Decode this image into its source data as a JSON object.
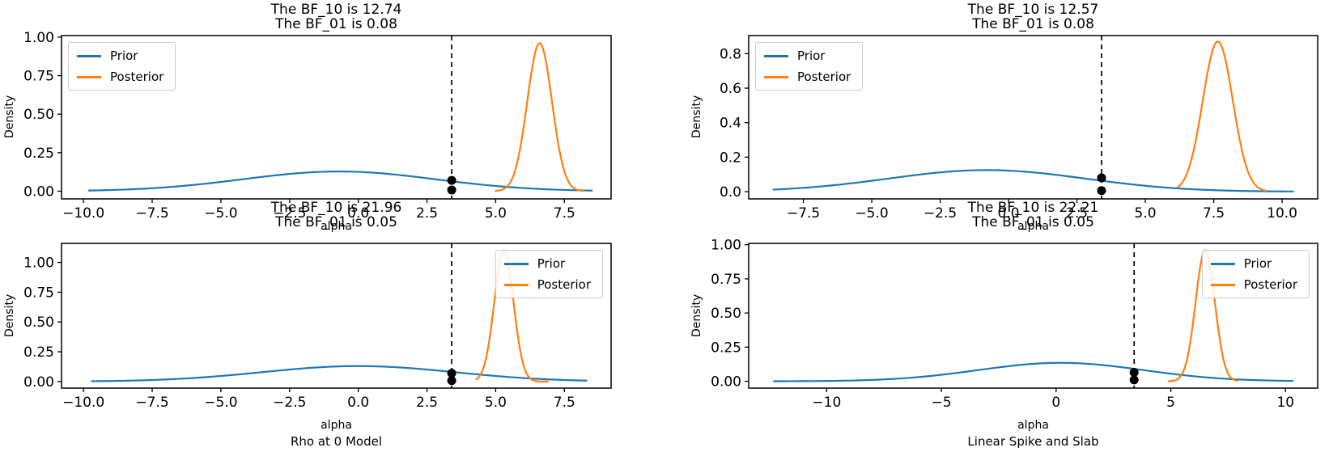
{
  "figure": {
    "background": "#ffffff"
  },
  "colors": {
    "prior": "#1f77b4",
    "posterior": "#ff7f0e",
    "observed": "#000000"
  },
  "legend": {
    "prior_label": "Prior",
    "posterior_label": "Posterior"
  },
  "chart_data": [
    {
      "type": "line",
      "id": "top-left",
      "title_line1": "The BF_10 is 12.74",
      "title_line2": "The BF_01 is 0.08",
      "bf_10": 12.74,
      "bf_01": 0.08,
      "xlabel": "alpha",
      "ylabel": "Density",
      "model_label": "",
      "legend_position": "upper-left",
      "xlim": [
        -10.8,
        9.2
      ],
      "ylim": [
        -0.05,
        1.01
      ],
      "xticks": [
        -10.0,
        -7.5,
        -5.0,
        -2.5,
        0.0,
        2.5,
        5.0,
        7.5
      ],
      "xtick_labels": [
        "−10.0",
        "−7.5",
        "−5.0",
        "−2.5",
        "0.0",
        "2.5",
        "5.0",
        "7.5"
      ],
      "yticks": [
        0.0,
        0.25,
        0.5,
        0.75,
        1.0
      ],
      "ytick_labels": [
        "0.00",
        "0.25",
        "0.50",
        "0.75",
        "1.00"
      ],
      "series": [
        {
          "name": "Prior",
          "color_key": "prior",
          "shape": "gaussian",
          "mu": -0.7,
          "sigma": 3.5,
          "peak": 0.128,
          "support": [
            -9.8,
            8.5
          ]
        },
        {
          "name": "Posterior",
          "color_key": "posterior",
          "shape": "gaussian",
          "mu": 6.6,
          "sigma": 0.45,
          "peak": 0.96,
          "support": [
            5.0,
            8.2
          ]
        }
      ],
      "observed_alpha": 3.4,
      "observed_points": [
        {
          "x": 3.4,
          "y": 0.07
        },
        {
          "x": 3.4,
          "y": 0.008
        }
      ]
    },
    {
      "type": "line",
      "id": "top-right",
      "title_line1": "The BF_10 is 12.57",
      "title_line2": "The BF_01 is 0.08",
      "bf_10": 12.57,
      "bf_01": 0.08,
      "xlabel": "alpha",
      "ylabel": "Density",
      "model_label": "",
      "legend_position": "upper-left",
      "xlim": [
        -9.5,
        11.3
      ],
      "ylim": [
        -0.042,
        0.905
      ],
      "xticks": [
        -7.5,
        -5.0,
        -2.5,
        0.0,
        2.5,
        5.0,
        7.5,
        10.0
      ],
      "xtick_labels": [
        "−7.5",
        "−5.0",
        "−2.5",
        "0.0",
        "2.5",
        "5.0",
        "7.5",
        "10.0"
      ],
      "yticks": [
        0.0,
        0.2,
        0.4,
        0.6,
        0.8
      ],
      "ytick_labels": [
        "0.0",
        "0.2",
        "0.4",
        "0.6",
        "0.8"
      ],
      "series": [
        {
          "name": "Prior",
          "color_key": "prior",
          "shape": "gaussian",
          "mu": -0.8,
          "sigma": 3.6,
          "peak": 0.125,
          "support": [
            -8.6,
            10.4
          ]
        },
        {
          "name": "Posterior",
          "color_key": "posterior",
          "shape": "gaussian",
          "mu": 7.65,
          "sigma": 0.55,
          "peak": 0.87,
          "support": [
            6.2,
            9.4
          ]
        }
      ],
      "observed_alpha": 3.4,
      "observed_points": [
        {
          "x": 3.4,
          "y": 0.08
        },
        {
          "x": 3.4,
          "y": 0.006
        }
      ]
    },
    {
      "type": "line",
      "id": "bottom-left",
      "title_line1": "The BF_10 is 21.96",
      "title_line2": "The BF_01 is 0.05",
      "bf_10": 21.96,
      "bf_01": 0.05,
      "xlabel": "alpha",
      "ylabel": "Density",
      "model_label": "Rho at 0 Model",
      "legend_position": "upper-right",
      "xlim": [
        -10.8,
        9.2
      ],
      "ylim": [
        -0.055,
        1.16
      ],
      "xticks": [
        -10.0,
        -7.5,
        -5.0,
        -2.5,
        0.0,
        2.5,
        5.0,
        7.5
      ],
      "xtick_labels": [
        "−10.0",
        "−7.5",
        "−5.0",
        "−2.5",
        "0.0",
        "2.5",
        "5.0",
        "7.5"
      ],
      "yticks": [
        0.0,
        0.25,
        0.5,
        0.75,
        1.0
      ],
      "ytick_labels": [
        "0.00",
        "0.25",
        "0.50",
        "0.75",
        "1.00"
      ],
      "series": [
        {
          "name": "Prior",
          "color_key": "prior",
          "shape": "gaussian",
          "mu": 0.0,
          "sigma": 3.5,
          "peak": 0.13,
          "support": [
            -9.7,
            8.3
          ]
        },
        {
          "name": "Posterior",
          "color_key": "posterior",
          "shape": "gaussian",
          "mu": 5.3,
          "sigma": 0.35,
          "peak": 1.1,
          "support": [
            4.3,
            6.9
          ]
        }
      ],
      "observed_alpha": 3.4,
      "observed_points": [
        {
          "x": 3.4,
          "y": 0.07
        },
        {
          "x": 3.4,
          "y": 0.008
        }
      ]
    },
    {
      "type": "line",
      "id": "bottom-right",
      "title_line1": "The BF_10 is 22.21",
      "title_line2": "The BF_01 is 0.05",
      "bf_10": 22.21,
      "bf_01": 0.05,
      "xlabel": "alpha",
      "ylabel": "Density",
      "model_label": "Linear Spike and Slab",
      "legend_position": "upper-right",
      "xlim": [
        -13.4,
        11.4
      ],
      "ylim": [
        -0.05,
        1.01
      ],
      "xticks": [
        -10,
        -5,
        0,
        5,
        10
      ],
      "xtick_labels": [
        "−10",
        "−5",
        "0",
        "5",
        "10"
      ],
      "yticks": [
        0.0,
        0.25,
        0.5,
        0.75,
        1.0
      ],
      "ytick_labels": [
        "0.00",
        "0.25",
        "0.50",
        "0.75",
        "1.00"
      ],
      "series": [
        {
          "name": "Prior",
          "color_key": "prior",
          "shape": "gaussian",
          "mu": 0.2,
          "sigma": 3.6,
          "peak": 0.135,
          "support": [
            -12.3,
            10.3
          ]
        },
        {
          "name": "Posterior",
          "color_key": "posterior",
          "shape": "gaussian",
          "mu": 6.5,
          "sigma": 0.42,
          "peak": 0.96,
          "support": [
            4.9,
            7.9
          ]
        }
      ],
      "observed_alpha": 3.4,
      "observed_points": [
        {
          "x": 3.4,
          "y": 0.065
        },
        {
          "x": 3.4,
          "y": 0.01
        }
      ]
    }
  ]
}
